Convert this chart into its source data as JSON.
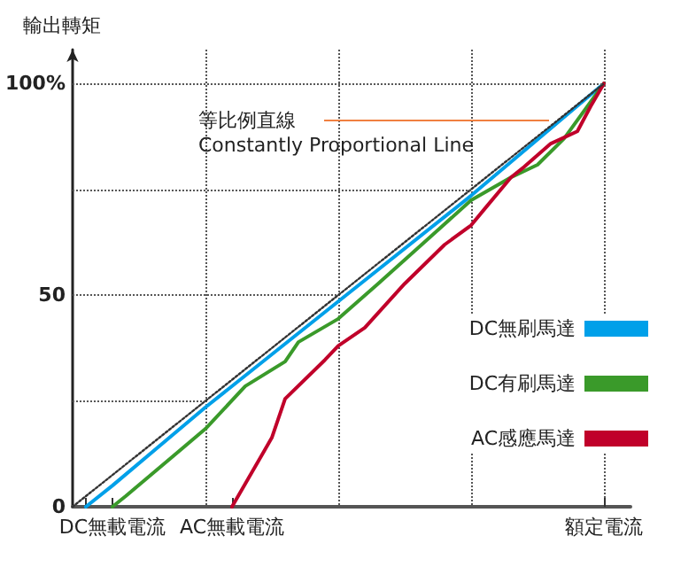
{
  "chart_data": {
    "type": "line",
    "ylabel": "輸出轉矩",
    "categories": [
      null,
      null,
      null,
      "DC無載電流",
      null,
      null,
      null,
      null,
      null,
      null,
      null,
      null,
      "AC無載電流",
      null,
      null,
      null,
      null,
      null,
      null,
      null,
      null,
      null,
      null,
      null,
      null,
      null,
      null,
      null,
      null,
      null,
      null,
      null,
      null,
      null,
      null,
      null,
      null,
      null,
      null,
      null,
      "額定電流",
      null,
      null
    ],
    "ylim": [
      0,
      108
    ],
    "yticks": [
      0,
      50,
      {
        "value": 100,
        "label": "100%"
      }
    ],
    "series": [
      {
        "color": "#333333",
        "line_style": "dotted",
        "values": [
          0,
          null,
          null,
          null,
          null,
          null,
          null,
          null,
          null,
          null,
          null,
          null,
          null,
          null,
          null,
          null,
          null,
          null,
          null,
          null,
          null,
          null,
          null,
          null,
          null,
          null,
          null,
          null,
          null,
          null,
          null,
          null,
          null,
          null,
          null,
          null,
          null,
          null,
          null,
          null,
          100,
          null,
          null
        ]
      },
      {
        "name": "DC無刷馬達",
        "color": "#00a0e9",
        "values": [
          null,
          0,
          null,
          5,
          null,
          null,
          null,
          null,
          null,
          null,
          23.5,
          null,
          null,
          null,
          null,
          null,
          null,
          null,
          null,
          null,
          48.5,
          null,
          null,
          null,
          null,
          null,
          null,
          null,
          null,
          null,
          73.5,
          null,
          null,
          null,
          null,
          null,
          null,
          null,
          null,
          null,
          100,
          null,
          null
        ]
      },
      {
        "name": "DC有刷馬達",
        "color": "#3a9a2a",
        "values": [
          null,
          null,
          null,
          0,
          2.5,
          null,
          null,
          null,
          null,
          null,
          18.4,
          null,
          null,
          28.5,
          null,
          null,
          34.3,
          38.9,
          null,
          null,
          44.4,
          null,
          null,
          52.7,
          null,
          null,
          null,
          null,
          null,
          null,
          72.4,
          null,
          null,
          77.8,
          null,
          80.8,
          null,
          87,
          null,
          null,
          100,
          null,
          null
        ]
      },
      {
        "name": "AC感應馬達",
        "color": "#c0002a",
        "values": [
          null,
          null,
          null,
          null,
          null,
          null,
          null,
          null,
          null,
          null,
          null,
          null,
          0,
          null,
          null,
          16.3,
          25.5,
          null,
          null,
          34.7,
          38,
          null,
          42.3,
          null,
          null,
          52.7,
          null,
          null,
          61.9,
          null,
          66.5,
          70.3,
          null,
          77.8,
          80.3,
          null,
          85.8,
          null,
          88.7,
          94.6,
          100,
          null,
          null
        ]
      }
    ],
    "ref_lines": [
      {
        "axis": "y",
        "value": 25,
        "color": "#555555",
        "line_style": "dotted"
      },
      {
        "axis": "y",
        "value": 50,
        "color": "#555555",
        "line_style": "dotted"
      },
      {
        "axis": "y",
        "value": 75,
        "color": "#555555",
        "line_style": "dotted"
      },
      {
        "axis": "y",
        "value": 100,
        "color": "#555555",
        "line_style": "dotted"
      }
    ],
    "annotations": [
      "等比例直線\nConstantly Proportional Line"
    ],
    "legend": "right",
    "marker": "none",
    "line_style": "solid",
    "grid": "x"
  }
}
